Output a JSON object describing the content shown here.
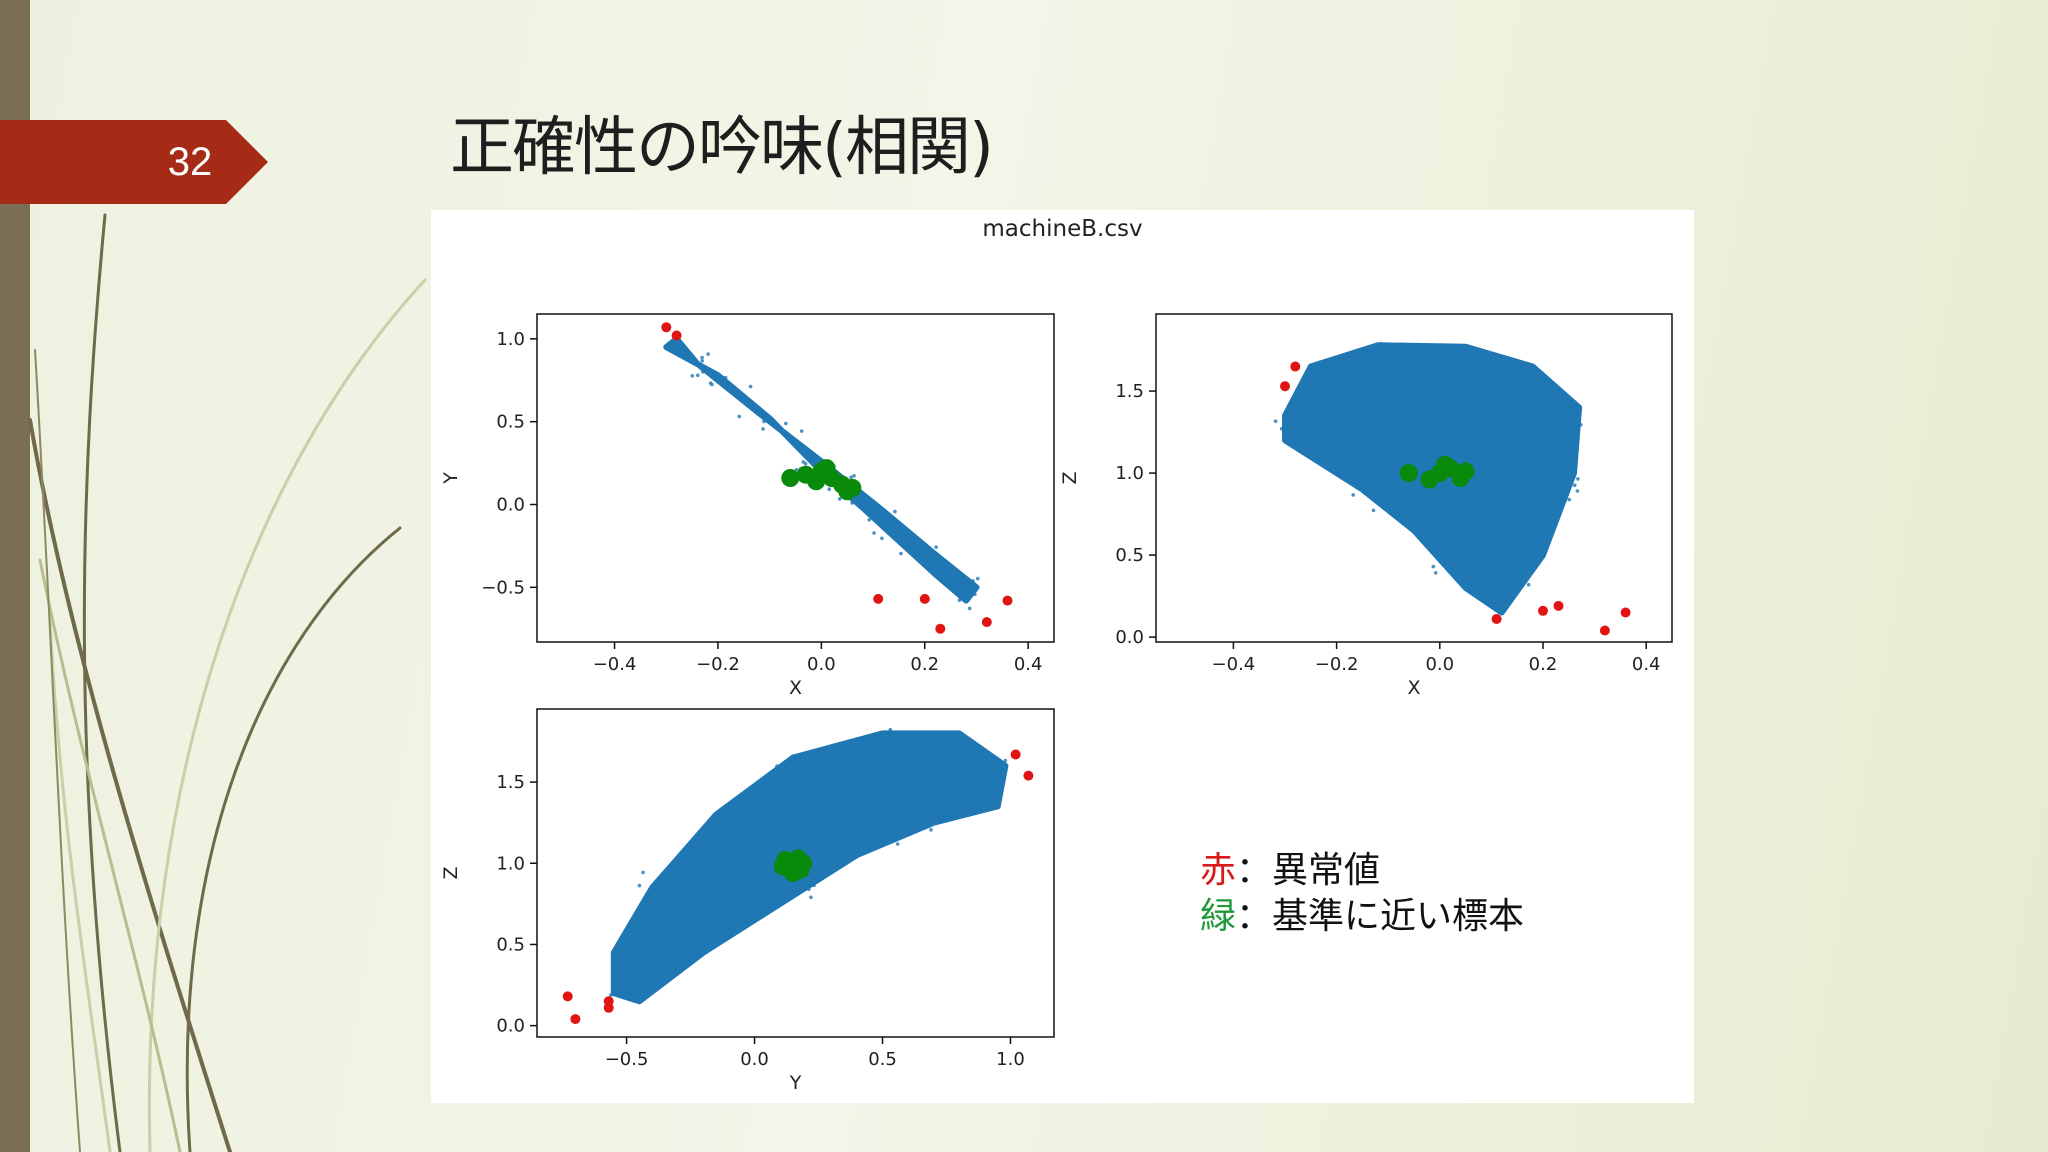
{
  "slide": {
    "number": "32",
    "title": "正確性の吟味(相関)",
    "figure_title": "machineB.csv",
    "colors": {
      "accent_tab": "#a62b17",
      "left_bar": "#7a6e55",
      "normal": "#1f77b4",
      "anomaly": "#e11414",
      "baseline": "#0a8a0a"
    }
  },
  "legend": [
    {
      "swatch": "赤",
      "sep": "：",
      "label": "異常値",
      "color": "#d91a1a"
    },
    {
      "swatch": "緑",
      "sep": "：",
      "label": "基準に近い標本",
      "color": "#1e9a3a"
    }
  ],
  "chart_data": [
    {
      "type": "scatter",
      "xlabel": "X",
      "ylabel": "Y",
      "xlim": [
        -0.55,
        0.45
      ],
      "ylim": [
        -0.83,
        1.15
      ],
      "xticks": [
        "−0.4",
        "−0.2",
        "0.0",
        "0.2",
        "0.4"
      ],
      "xtick_values": [
        -0.4,
        -0.2,
        0.0,
        0.2,
        0.4
      ],
      "yticks": [
        "−0.5",
        "0.0",
        "0.5",
        "1.0"
      ],
      "ytick_values": [
        -0.5,
        0.0,
        0.5,
        1.0
      ],
      "series": [
        {
          "color": "#1f77b4",
          "cloud": [
            [
              -0.3,
              0.95
            ],
            [
              -0.2,
              0.78
            ],
            [
              -0.1,
              0.52
            ],
            [
              0.0,
              0.2
            ],
            [
              0.08,
              -0.02
            ],
            [
              0.15,
              -0.22
            ],
            [
              0.22,
              -0.42
            ],
            [
              0.28,
              -0.58
            ],
            [
              0.3,
              -0.5
            ],
            [
              0.22,
              -0.3
            ],
            [
              0.12,
              -0.04
            ],
            [
              0.0,
              0.26
            ],
            [
              -0.12,
              0.55
            ],
            [
              -0.24,
              0.85
            ],
            [
              -0.28,
              1.0
            ]
          ]
        },
        {
          "color": "#e11414",
          "values": [
            [
              -0.3,
              1.07
            ],
            [
              -0.28,
              1.02
            ],
            [
              0.11,
              -0.57
            ],
            [
              0.2,
              -0.57
            ],
            [
              0.23,
              -0.75
            ],
            [
              0.32,
              -0.71
            ],
            [
              0.36,
              -0.58
            ]
          ]
        },
        {
          "color": "#0a8a0a",
          "values": [
            [
              -0.03,
              0.18
            ],
            [
              0.0,
              0.2
            ],
            [
              0.02,
              0.16
            ],
            [
              0.04,
              0.12
            ],
            [
              0.06,
              0.1
            ],
            [
              0.01,
              0.22
            ],
            [
              -0.01,
              0.14
            ],
            [
              0.05,
              0.08
            ],
            [
              -0.06,
              0.16
            ]
          ]
        }
      ]
    },
    {
      "type": "scatter",
      "xlabel": "X",
      "ylabel": "Z",
      "xlim": [
        -0.55,
        0.45
      ],
      "ylim": [
        -0.03,
        1.97
      ],
      "xticks": [
        "−0.4",
        "−0.2",
        "0.0",
        "0.2",
        "0.4"
      ],
      "xtick_values": [
        -0.4,
        -0.2,
        0.0,
        0.2,
        0.4
      ],
      "yticks": [
        "0.0",
        "0.5",
        "1.0",
        "1.5"
      ],
      "ytick_values": [
        0.0,
        0.5,
        1.0,
        1.5
      ],
      "series": [
        {
          "color": "#1f77b4",
          "cloud": [
            [
              -0.3,
              1.35
            ],
            [
              -0.25,
              1.65
            ],
            [
              -0.12,
              1.78
            ],
            [
              0.05,
              1.77
            ],
            [
              0.18,
              1.65
            ],
            [
              0.27,
              1.4
            ],
            [
              0.26,
              1.0
            ],
            [
              0.2,
              0.5
            ],
            [
              0.12,
              0.15
            ],
            [
              0.05,
              0.3
            ],
            [
              -0.05,
              0.65
            ],
            [
              -0.15,
              0.9
            ],
            [
              -0.25,
              1.1
            ],
            [
              -0.3,
              1.2
            ]
          ]
        },
        {
          "color": "#e11414",
          "values": [
            [
              -0.3,
              1.53
            ],
            [
              -0.28,
              1.65
            ],
            [
              0.11,
              0.11
            ],
            [
              0.2,
              0.16
            ],
            [
              0.23,
              0.19
            ],
            [
              0.32,
              0.04
            ],
            [
              0.36,
              0.15
            ]
          ]
        },
        {
          "color": "#0a8a0a",
          "values": [
            [
              0.0,
              1.0
            ],
            [
              0.02,
              1.03
            ],
            [
              0.04,
              0.97
            ],
            [
              -0.02,
              0.96
            ],
            [
              0.01,
              1.05
            ],
            [
              0.05,
              1.01
            ],
            [
              -0.06,
              1.0
            ]
          ]
        }
      ]
    },
    {
      "type": "scatter",
      "xlabel": "Y",
      "ylabel": "Z",
      "xlim": [
        -0.85,
        1.17
      ],
      "ylim": [
        -0.07,
        1.95
      ],
      "xticks": [
        "−0.5",
        "0.0",
        "0.5",
        "1.0"
      ],
      "xtick_values": [
        -0.5,
        0.0,
        0.5,
        1.0
      ],
      "yticks": [
        "0.0",
        "0.5",
        "1.0",
        "1.5"
      ],
      "ytick_values": [
        0.0,
        0.5,
        1.0,
        1.5
      ],
      "series": [
        {
          "color": "#1f77b4",
          "cloud": [
            [
              -0.55,
              0.2
            ],
            [
              -0.55,
              0.45
            ],
            [
              -0.4,
              0.85
            ],
            [
              -0.15,
              1.3
            ],
            [
              0.15,
              1.65
            ],
            [
              0.5,
              1.8
            ],
            [
              0.8,
              1.8
            ],
            [
              0.98,
              1.6
            ],
            [
              0.95,
              1.35
            ],
            [
              0.7,
              1.25
            ],
            [
              0.4,
              1.05
            ],
            [
              0.1,
              0.75
            ],
            [
              -0.2,
              0.45
            ],
            [
              -0.45,
              0.15
            ]
          ]
        },
        {
          "color": "#e11414",
          "values": [
            [
              -0.73,
              0.18
            ],
            [
              -0.7,
              0.04
            ],
            [
              -0.57,
              0.15
            ],
            [
              -0.57,
              0.11
            ],
            [
              1.02,
              1.67
            ],
            [
              1.07,
              1.54
            ]
          ]
        },
        {
          "color": "#0a8a0a",
          "values": [
            [
              0.15,
              1.0
            ],
            [
              0.13,
              0.97
            ],
            [
              0.17,
              1.03
            ],
            [
              0.12,
              1.02
            ],
            [
              0.18,
              0.96
            ],
            [
              0.15,
              0.94
            ],
            [
              0.11,
              0.98
            ],
            [
              0.19,
              1.0
            ]
          ]
        }
      ]
    }
  ]
}
